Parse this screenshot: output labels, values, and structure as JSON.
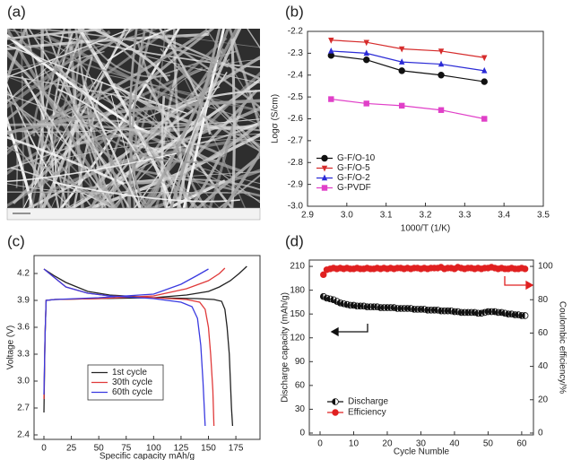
{
  "chart_data": [
    {
      "type": "image",
      "panel_label": "(a)"
    },
    {
      "type": "line",
      "panel_label": "(b)",
      "x_label": "1000/T (1/K)",
      "y_label": "Logσ (S/cm)",
      "x": [
        2.96,
        3.05,
        3.14,
        3.24,
        3.35
      ],
      "series": [
        {
          "name": "G-F/O-10",
          "color": "#111111",
          "marker": "circle",
          "values": [
            -2.31,
            -2.33,
            -2.38,
            -2.4,
            -2.43
          ]
        },
        {
          "name": "G-F/O-5",
          "color": "#d62c2c",
          "marker": "triangle-down",
          "values": [
            -2.24,
            -2.25,
            -2.28,
            -2.29,
            -2.32
          ]
        },
        {
          "name": "G-F/O-2",
          "color": "#2b2bd6",
          "marker": "triangle-up",
          "values": [
            -2.29,
            -2.3,
            -2.34,
            -2.35,
            -2.38
          ]
        },
        {
          "name": "G-PVDF",
          "color": "#e040c8",
          "marker": "square",
          "values": [
            -2.51,
            -2.53,
            -2.54,
            -2.56,
            -2.6
          ]
        }
      ],
      "xlim": [
        2.9,
        3.5
      ],
      "ylim": [
        -3.0,
        -2.2
      ],
      "xticks": [
        2.9,
        {
          "value": 3,
          "label": "3.0"
        },
        3.1,
        3.2,
        3.3,
        3.4,
        3.5
      ],
      "yticks": [
        -2.2,
        -2.3,
        -2.4,
        -2.5,
        -2.6,
        -2.7,
        -2.8,
        -2.9,
        {
          "value": -3,
          "label": "-3.0"
        }
      ],
      "legend": "lower left"
    },
    {
      "type": "line",
      "panel_label": "(c)",
      "x_label": "Specific capacity mAh/g",
      "y_label": "Voltage (V)",
      "series": [
        {
          "name": "1st cycle",
          "color": "#222222",
          "x": [
            0,
            1,
            2,
            10,
            50,
            100,
            130,
            150,
            160,
            170,
            178,
            185,
            null,
            0,
            10,
            20,
            40,
            60,
            100,
            140,
            155,
            162,
            165,
            167,
            169,
            170,
            171,
            172
          ],
          "values": [
            2.65,
            3.5,
            3.9,
            3.91,
            3.92,
            3.93,
            3.96,
            4.0,
            4.05,
            4.12,
            4.2,
            4.28,
            null,
            4.25,
            4.17,
            4.1,
            4.0,
            3.96,
            3.93,
            3.92,
            3.91,
            3.89,
            3.8,
            3.6,
            3.3,
            3.0,
            2.7,
            2.5
          ]
        },
        {
          "name": "30th cycle",
          "color": "#e03a3a",
          "x": [
            0,
            1,
            2,
            10,
            50,
            100,
            130,
            150,
            160,
            165,
            null,
            0,
            10,
            20,
            40,
            60,
            100,
            130,
            142,
            147,
            150,
            152,
            154,
            155
          ],
          "values": [
            2.8,
            3.5,
            3.9,
            3.91,
            3.92,
            3.95,
            4.03,
            4.12,
            4.2,
            4.26,
            null,
            4.25,
            4.15,
            4.05,
            3.98,
            3.95,
            3.93,
            3.91,
            3.88,
            3.8,
            3.6,
            3.3,
            2.9,
            2.5
          ]
        },
        {
          "name": "60th cycle",
          "color": "#3a3ae0",
          "x": [
            0,
            1,
            2,
            10,
            50,
            100,
            125,
            140,
            150,
            null,
            0,
            10,
            20,
            40,
            60,
            100,
            125,
            135,
            140,
            143,
            145,
            147
          ],
          "values": [
            2.85,
            3.5,
            3.9,
            3.91,
            3.93,
            3.97,
            4.08,
            4.18,
            4.25,
            null,
            4.25,
            4.15,
            4.05,
            3.98,
            3.95,
            3.92,
            3.88,
            3.83,
            3.7,
            3.4,
            3.0,
            2.5
          ]
        }
      ],
      "xlim": [
        -9,
        197
      ],
      "ylim": [
        2.35,
        4.4
      ],
      "xticks": [
        0,
        25,
        50,
        75,
        100,
        125,
        150,
        175
      ],
      "yticks": [
        2.4,
        2.7,
        {
          "value": 3,
          "label": "3.0"
        },
        3.3,
        3.6,
        3.9,
        4.2
      ],
      "legend": "lower center"
    },
    {
      "type": "scatter",
      "panel_label": "(d)",
      "x_label": "Cycle Numble",
      "y_label": "Discharge capacity (mAh/g)",
      "y2_label": "Coulombic efficiency/%",
      "x": [
        1,
        2,
        3,
        4,
        5,
        6,
        7,
        8,
        9,
        10,
        11,
        12,
        13,
        14,
        15,
        16,
        17,
        18,
        19,
        20,
        21,
        22,
        23,
        24,
        25,
        26,
        27,
        28,
        29,
        30,
        31,
        32,
        33,
        34,
        35,
        36,
        37,
        38,
        39,
        40,
        41,
        42,
        43,
        44,
        45,
        46,
        47,
        48,
        49,
        50,
        51,
        52,
        53,
        54,
        55,
        56,
        57,
        58,
        59,
        60,
        61
      ],
      "series": [
        {
          "name": "Discharge",
          "color": "#111111",
          "marker": "half-circle",
          "values": [
            172,
            170,
            169,
            168,
            166,
            164,
            163,
            162,
            161,
            161,
            160,
            160,
            160,
            159,
            159,
            159,
            159,
            158,
            158,
            158,
            158,
            158,
            157,
            157,
            157,
            157,
            157,
            156,
            156,
            156,
            156,
            155,
            155,
            155,
            155,
            154,
            154,
            154,
            154,
            153,
            153,
            152,
            152,
            152,
            152,
            152,
            151,
            151,
            152,
            153,
            153,
            153,
            152,
            152,
            151,
            150,
            150,
            149,
            149,
            148,
            148
          ]
        },
        {
          "name": "Efficiency",
          "color": "#e02020",
          "marker": "circle",
          "axis": "y2",
          "values": [
            95,
            98,
            98.5,
            99,
            98.5,
            99,
            98.5,
            99,
            98.5,
            98.5,
            99,
            98.5,
            98.5,
            99,
            98.5,
            98.5,
            99,
            98.5,
            99,
            98.5,
            99,
            98.5,
            99,
            99,
            98.5,
            99,
            98.5,
            99,
            99,
            98.5,
            99,
            98.5,
            99,
            99,
            99,
            99.5,
            98.5,
            99,
            99,
            98.5,
            99.5,
            99,
            98.5,
            99,
            99,
            98.5,
            99,
            98.5,
            99,
            99,
            99.5,
            99,
            98.5,
            99,
            98.5,
            98.5,
            99,
            98.5,
            98.5,
            99,
            98.5
          ]
        }
      ],
      "xlim": [
        -3.2,
        63.5
      ],
      "ylim": [
        -2.3,
        218
      ],
      "y2lim": [
        -1.1,
        103.8
      ],
      "xticks": [
        0,
        10,
        20,
        30,
        40,
        50,
        60
      ],
      "yticks": [
        0,
        30,
        60,
        90,
        120,
        150,
        180,
        210
      ],
      "y2ticks": [
        0,
        20,
        40,
        60,
        80,
        100
      ],
      "legend": "lower left"
    }
  ]
}
